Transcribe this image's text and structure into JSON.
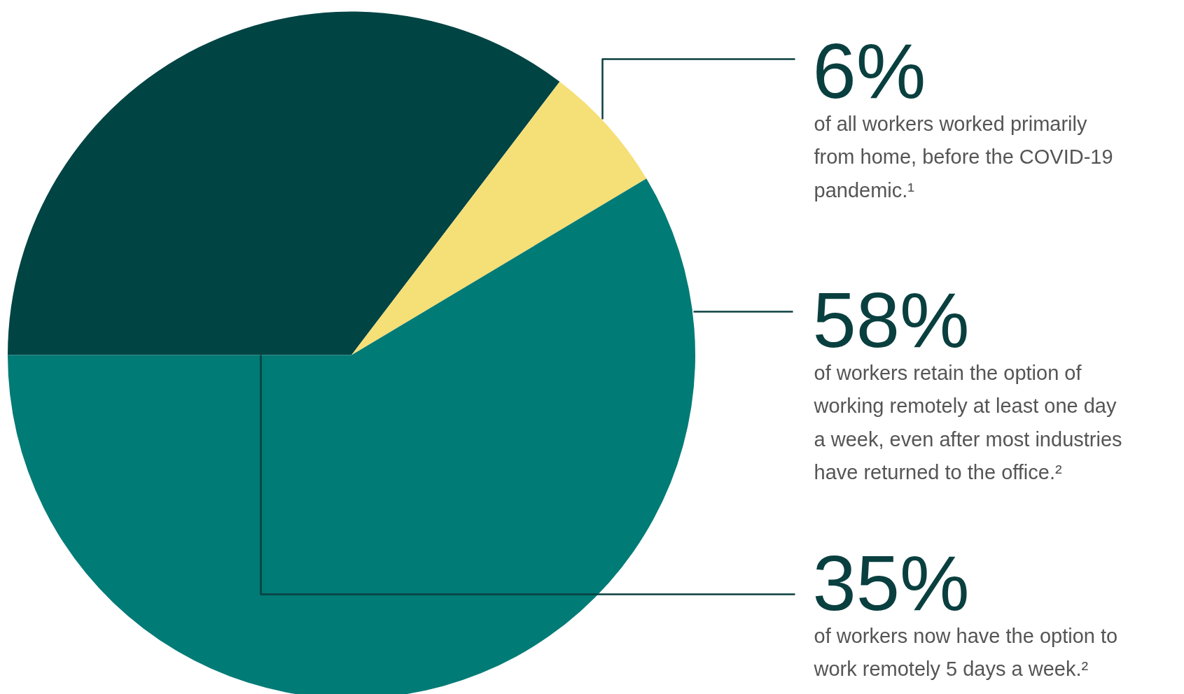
{
  "chart_data": {
    "type": "pie",
    "categories": [
      "of workers now have the option to work remotely 5 days a week.²",
      "of all workers worked primarily from home, before the COVID-19 pandemic.¹",
      "of workers retain the option of working remotely at least one day a week, even after most industries have returned to the office.²"
    ],
    "values": [
      35,
      6,
      58
    ],
    "colors": [
      "#004444",
      "#f5df77",
      "#007b76"
    ],
    "value_labels": [
      "35%",
      "6%",
      "58%"
    ]
  }
}
